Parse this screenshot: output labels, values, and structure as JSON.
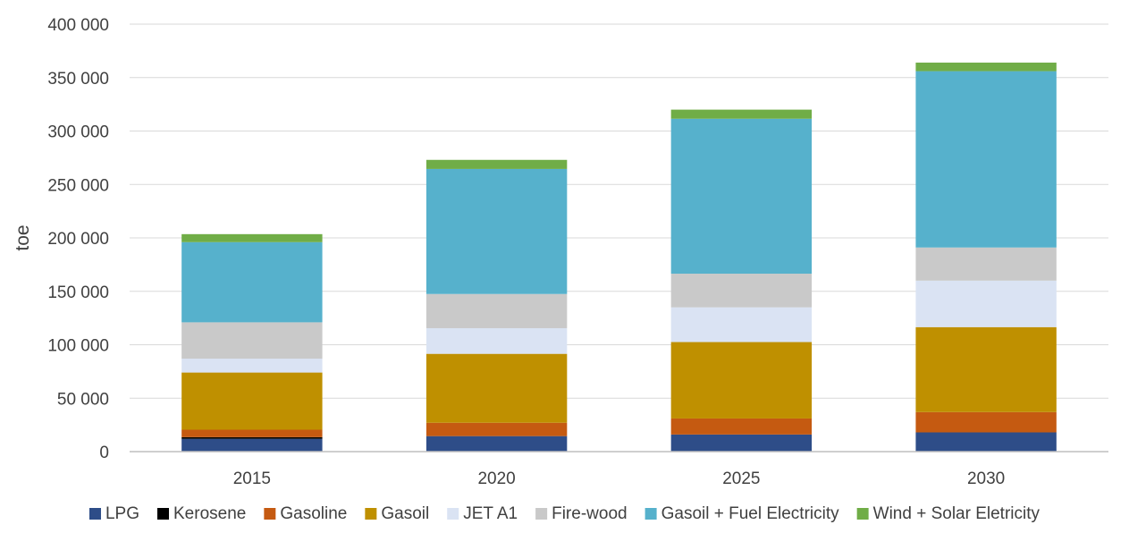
{
  "chart_data": {
    "type": "bar",
    "stacked": true,
    "categories": [
      "2015",
      "2020",
      "2025",
      "2030"
    ],
    "series": [
      {
        "name": "LPG",
        "color": "#2e4d88",
        "values": [
          12000,
          14500,
          16000,
          18000
        ]
      },
      {
        "name": "Kerosene",
        "color": "#000000",
        "values": [
          1500,
          0,
          0,
          0
        ]
      },
      {
        "name": "Gasoline",
        "color": "#c55a11",
        "values": [
          7000,
          12500,
          15000,
          19000
        ]
      },
      {
        "name": "Gasoil",
        "color": "#bf9000",
        "values": [
          53500,
          64500,
          71500,
          79500
        ]
      },
      {
        "name": "JET A1",
        "color": "#dae3f3",
        "values": [
          13000,
          24000,
          32500,
          43500
        ]
      },
      {
        "name": "Fire-wood",
        "color": "#c9c9c9",
        "values": [
          34000,
          32000,
          31500,
          31000
        ]
      },
      {
        "name": "Gasoil + Fuel Electricity",
        "color": "#56b1cc",
        "values": [
          75000,
          117000,
          145000,
          165000
        ]
      },
      {
        "name": "Wind + Solar Eletricity",
        "color": "#70ad47",
        "values": [
          7500,
          8500,
          8500,
          8000
        ]
      }
    ],
    "ylabel": "toe",
    "xlabel": "",
    "ylim": [
      0,
      400000
    ],
    "yticks": [
      0,
      50000,
      100000,
      150000,
      200000,
      250000,
      300000,
      350000,
      400000
    ],
    "ytick_labels": [
      "0",
      "50 000",
      "100 000",
      "150 000",
      "200 000",
      "250 000",
      "300 000",
      "350 000",
      "400 000"
    ],
    "grid": true,
    "legend_position": "bottom"
  }
}
